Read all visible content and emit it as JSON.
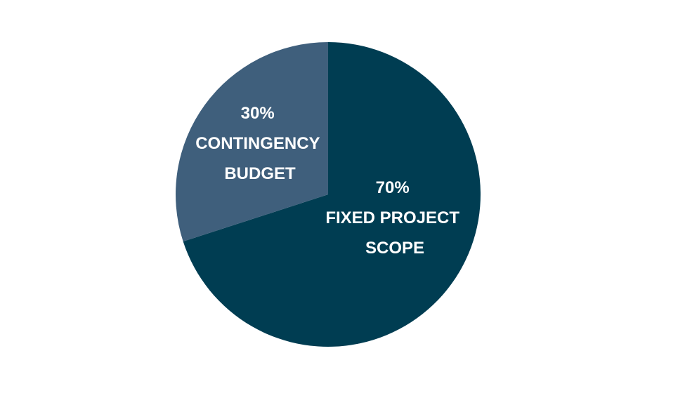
{
  "chart_data": {
    "type": "pie",
    "slices": [
      {
        "label_lines": [
          "70%",
          "FIXED PROJECT",
          "SCOPE"
        ],
        "value": 70,
        "color": "#003d52"
      },
      {
        "label_lines": [
          "30%",
          "CONTINGENCY",
          "BUDGET"
        ],
        "value": 30,
        "color": "#3f5f7c"
      }
    ],
    "start_angle_deg": 0,
    "direction": "clockwise",
    "legend": "none"
  }
}
